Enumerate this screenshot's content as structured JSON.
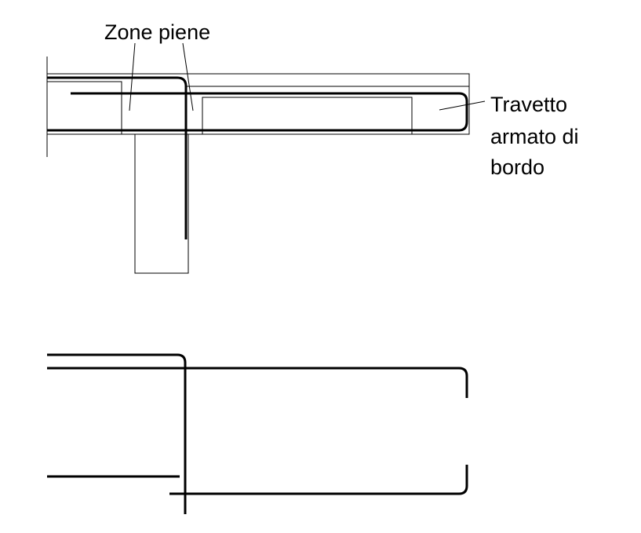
{
  "labels": {
    "zone_piene": "Zone piene",
    "travetto_line1": "Travetto",
    "travetto_line2": "armato di",
    "travetto_line3": "bordo"
  }
}
